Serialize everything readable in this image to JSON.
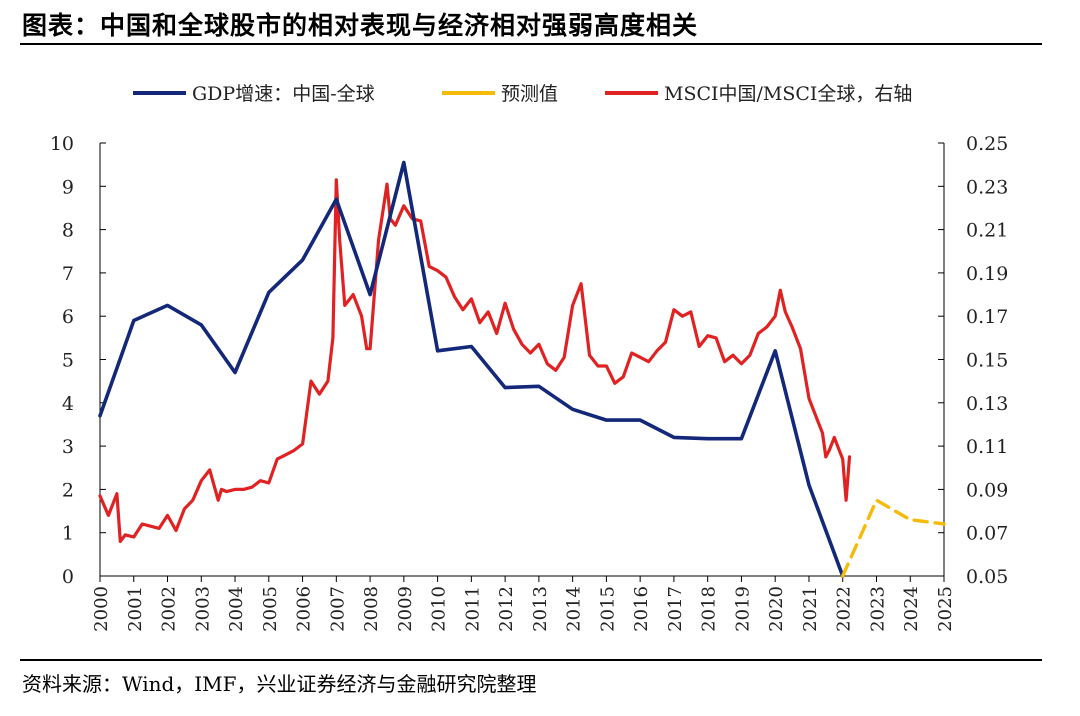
{
  "header": {
    "title": "图表：中国和全球股市的相对表现与经济相对强弱高度相关"
  },
  "footer": {
    "source": "资料来源：Wind，IMF，兴业证券经济与金融研究院整理"
  },
  "colors": {
    "gdp": "#14287a",
    "forecast": "#f5bb0a",
    "msci": "#e02222",
    "axis": "#000000"
  },
  "chart_data": {
    "type": "line",
    "title": "中国和全球股市的相对表现与经济相对强弱高度相关",
    "legend_position": "top",
    "xlim": [
      2000,
      2025
    ],
    "x_ticks": [
      2000,
      2001,
      2002,
      2003,
      2004,
      2005,
      2006,
      2007,
      2008,
      2009,
      2010,
      2011,
      2012,
      2013,
      2014,
      2015,
      2016,
      2017,
      2018,
      2019,
      2020,
      2021,
      2022,
      2023,
      2024,
      2025
    ],
    "y_left": {
      "lim": [
        0,
        10
      ],
      "ticks": [
        0,
        1,
        2,
        3,
        4,
        5,
        6,
        7,
        8,
        9,
        10
      ]
    },
    "y_right": {
      "lim": [
        0.05,
        0.25
      ],
      "ticks": [
        0.05,
        0.07,
        0.09,
        0.11,
        0.13,
        0.15,
        0.17,
        0.19,
        0.21,
        0.23,
        0.25
      ]
    },
    "series": [
      {
        "name": "GDP增速：中国-全球",
        "axis": "left",
        "style": "solid",
        "x": [
          2000,
          2001,
          2002,
          2003,
          2004,
          2005,
          2006,
          2007,
          2008,
          2009,
          2010,
          2011,
          2012,
          2013,
          2014,
          2015,
          2016,
          2017,
          2018,
          2019,
          2020,
          2021,
          2022
        ],
        "values": [
          3.7,
          5.9,
          6.25,
          5.8,
          4.7,
          6.55,
          7.3,
          8.7,
          6.5,
          9.55,
          5.2,
          5.3,
          4.35,
          4.38,
          3.85,
          3.6,
          3.6,
          3.2,
          3.17,
          3.17,
          5.2,
          2.1,
          0.0
        ]
      },
      {
        "name": "预测值",
        "axis": "left",
        "style": "dashed",
        "x": [
          2022,
          2023,
          2024,
          2025
        ],
        "values": [
          0.0,
          1.75,
          1.3,
          1.2
        ]
      },
      {
        "name": "MSCI中国/MSCI全球，右轴",
        "axis": "right",
        "style": "solid",
        "x": [
          2000.0,
          2000.25,
          2000.5,
          2000.6,
          2000.75,
          2001.0,
          2001.25,
          2001.5,
          2001.75,
          2002.0,
          2002.25,
          2002.5,
          2002.75,
          2003.0,
          2003.25,
          2003.5,
          2003.6,
          2003.75,
          2004.0,
          2004.25,
          2004.5,
          2004.75,
          2005.0,
          2005.25,
          2005.5,
          2005.75,
          2006.0,
          2006.25,
          2006.5,
          2006.75,
          2006.9,
          2007.0,
          2007.1,
          2007.25,
          2007.5,
          2007.75,
          2007.9,
          2008.0,
          2008.1,
          2008.25,
          2008.5,
          2008.6,
          2008.75,
          2009.0,
          2009.25,
          2009.5,
          2009.75,
          2010.0,
          2010.25,
          2010.5,
          2010.75,
          2011.0,
          2011.25,
          2011.5,
          2011.75,
          2012.0,
          2012.25,
          2012.5,
          2012.75,
          2013.0,
          2013.25,
          2013.5,
          2013.75,
          2014.0,
          2014.25,
          2014.5,
          2014.75,
          2015.0,
          2015.25,
          2015.5,
          2015.75,
          2016.0,
          2016.25,
          2016.5,
          2016.75,
          2017.0,
          2017.25,
          2017.5,
          2017.75,
          2018.0,
          2018.25,
          2018.5,
          2018.75,
          2019.0,
          2019.25,
          2019.5,
          2019.75,
          2020.0,
          2020.15,
          2020.3,
          2020.5,
          2020.75,
          2021.0,
          2021.25,
          2021.4,
          2021.5,
          2021.6,
          2021.75,
          2021.9,
          2022.0,
          2022.1,
          2022.2
        ],
        "values": [
          0.087,
          0.078,
          0.088,
          0.066,
          0.069,
          0.068,
          0.074,
          0.073,
          0.072,
          0.078,
          0.071,
          0.081,
          0.085,
          0.094,
          0.099,
          0.085,
          0.09,
          0.089,
          0.09,
          0.09,
          0.091,
          0.094,
          0.093,
          0.104,
          0.106,
          0.108,
          0.111,
          0.14,
          0.134,
          0.14,
          0.16,
          0.233,
          0.205,
          0.175,
          0.18,
          0.17,
          0.155,
          0.155,
          0.175,
          0.205,
          0.231,
          0.215,
          0.212,
          0.221,
          0.215,
          0.214,
          0.193,
          0.191,
          0.188,
          0.179,
          0.173,
          0.178,
          0.167,
          0.172,
          0.162,
          0.176,
          0.164,
          0.157,
          0.153,
          0.157,
          0.148,
          0.145,
          0.151,
          0.175,
          0.185,
          0.152,
          0.147,
          0.147,
          0.139,
          0.142,
          0.153,
          0.151,
          0.149,
          0.154,
          0.158,
          0.173,
          0.17,
          0.172,
          0.156,
          0.161,
          0.16,
          0.149,
          0.152,
          0.148,
          0.152,
          0.162,
          0.165,
          0.17,
          0.182,
          0.172,
          0.165,
          0.155,
          0.132,
          0.122,
          0.116,
          0.105,
          0.108,
          0.114,
          0.108,
          0.104,
          0.085,
          0.105
        ]
      }
    ]
  }
}
